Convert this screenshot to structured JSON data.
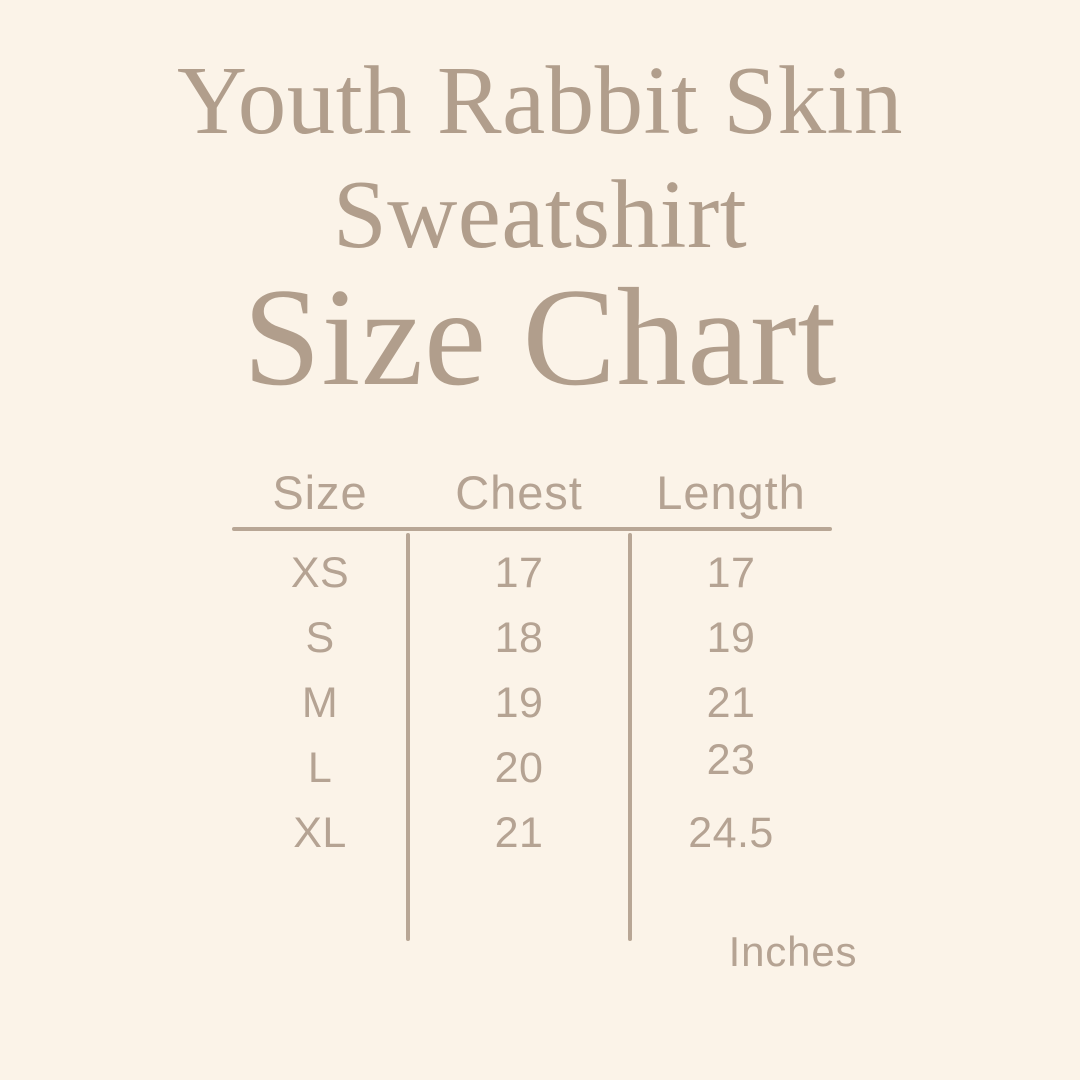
{
  "colors": {
    "background": "#fbf3e8",
    "title_text": "#b19e8c",
    "table_text": "#b5a393",
    "line": "#b8a695"
  },
  "title": {
    "line1": "Youth Rabbit Skin",
    "line2": "Sweatshirt",
    "heading": "Size Chart"
  },
  "chart_data": {
    "type": "table",
    "title": "Youth Rabbit Skin Sweatshirt Size Chart",
    "columns": [
      "Size",
      "Chest",
      "Length"
    ],
    "rows": [
      [
        "XS",
        "17",
        "17"
      ],
      [
        "S",
        "18",
        "19"
      ],
      [
        "M",
        "19",
        "21"
      ],
      [
        "L",
        "20",
        "23"
      ],
      [
        "XL",
        "21",
        "24.5"
      ]
    ],
    "units": "Inches",
    "layout": {
      "grid": "off",
      "header_rule": true,
      "column_rules": true
    }
  }
}
